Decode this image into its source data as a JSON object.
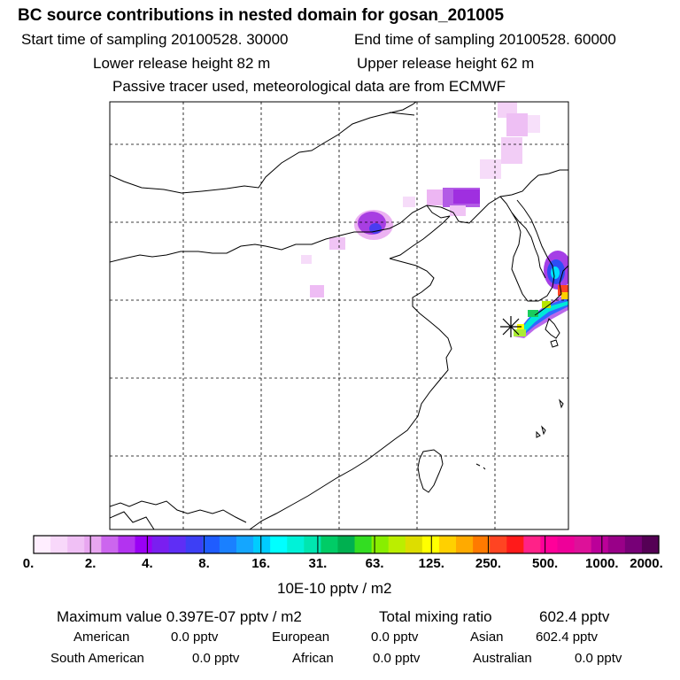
{
  "header": {
    "title": "BC  source contributions in nested domain for gosan_201005",
    "start_time": "Start time of sampling 20100528. 30000",
    "end_time": "End time of sampling 20100528. 60000",
    "lower_release": "Lower release height   82 m",
    "upper_release": "Upper release height   62 m",
    "tracer_note": "Passive tracer used, meteorological data are from ECMWF"
  },
  "colorbar": {
    "colors": [
      "#ffeeff",
      "#f8d8fa",
      "#f0c0f5",
      "#e8a6f0",
      "#cc66ee",
      "#b333f0",
      "#9a00f5",
      "#7a1ff0",
      "#5f2ef5",
      "#3d3ff5",
      "#1f5cff",
      "#1a80ff",
      "#14a6ff",
      "#00ccff",
      "#00ffff",
      "#00f2d8",
      "#00e6b0",
      "#00cc66",
      "#00b050",
      "#33dd22",
      "#88ee00",
      "#bbee00",
      "#dddd00",
      "#ffff00",
      "#ffd000",
      "#ffaa00",
      "#ff7a00",
      "#ff4422",
      "#ff1a1a",
      "#ff2288",
      "#ff0099",
      "#ee0099",
      "#dd1199",
      "#bb0099",
      "#990088",
      "#770077",
      "#550055"
    ],
    "tick_labels": [
      "0.",
      "2.",
      "4.",
      "8.",
      "16.",
      "31.",
      "63.",
      "125.",
      "250.",
      "500.",
      "1000.",
      "2000."
    ],
    "unit_label": "10E-10 pptv / m2"
  },
  "summary": {
    "max_value": "Maximum value  0.397E-07 pptv / m2",
    "total_label": "Total mixing ratio",
    "total_value": "602.4 pptv",
    "rows": [
      [
        {
          "label": "American",
          "value": "0.0 pptv"
        },
        {
          "label": "European",
          "value": "0.0 pptv"
        },
        {
          "label": "Asian",
          "value": "602.4 pptv"
        }
      ],
      [
        {
          "label": "South American",
          "value": "0.0 pptv"
        },
        {
          "label": "African",
          "value": "0.0 pptv"
        },
        {
          "label": "Australian",
          "value": "0.0 pptv"
        }
      ]
    ]
  }
}
